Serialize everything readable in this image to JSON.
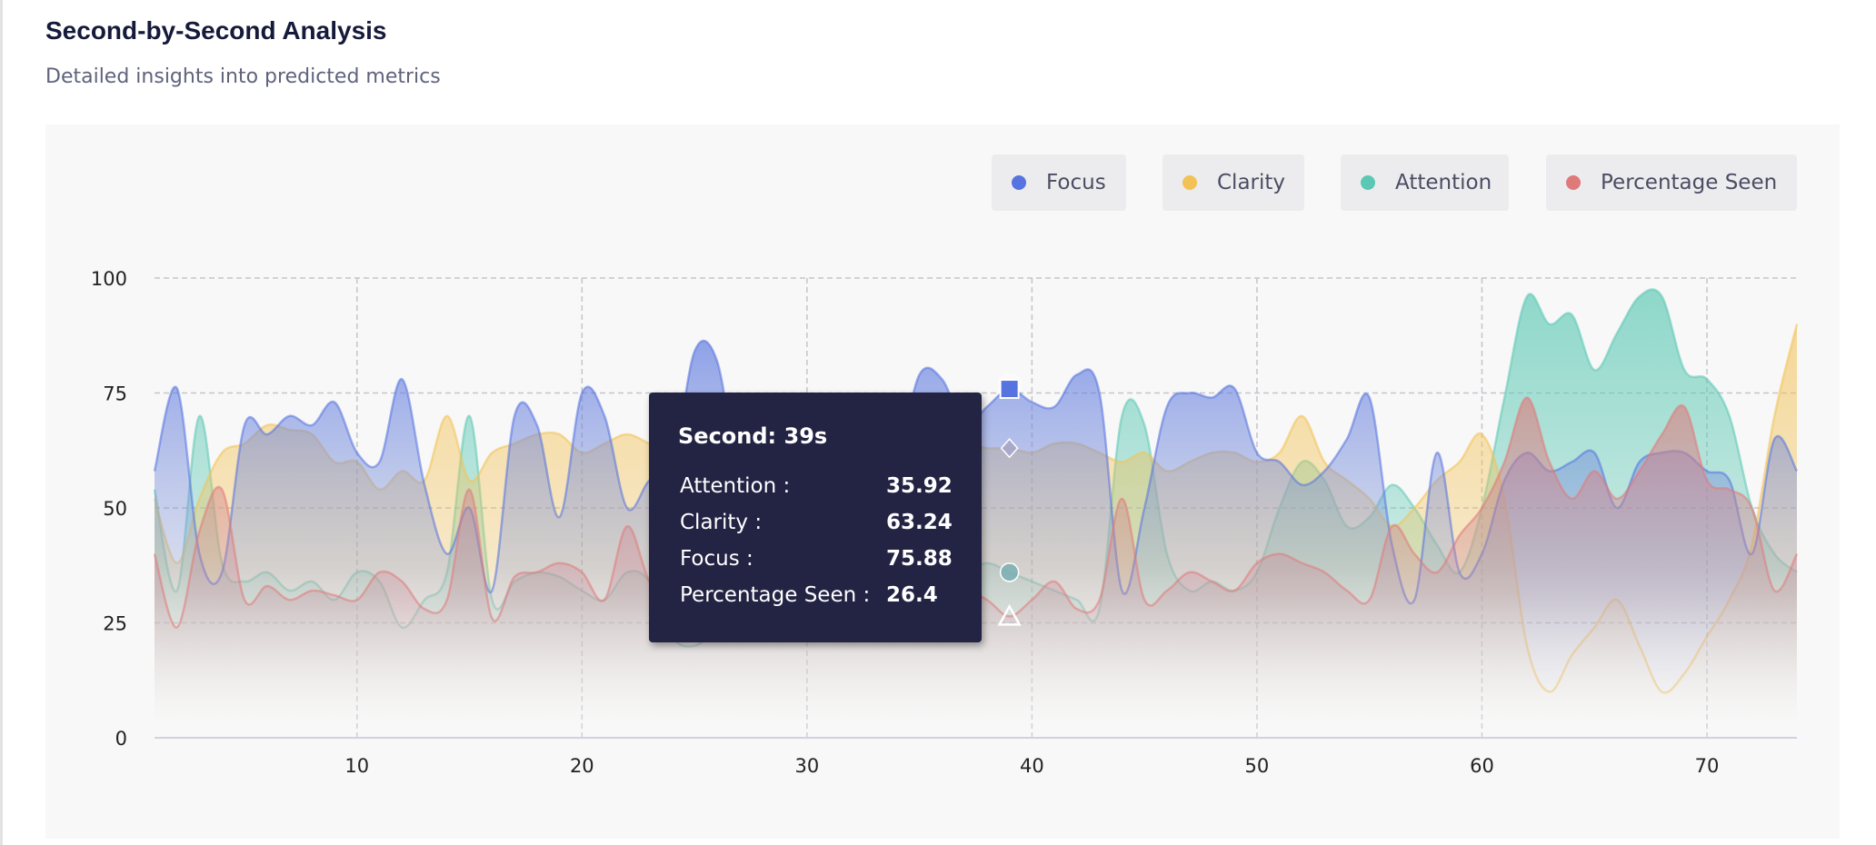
{
  "header": {
    "title": "Second-by-Second Analysis",
    "subtitle": "Detailed insights into predicted metrics"
  },
  "legend": [
    {
      "label": "Focus",
      "color": "#5673e0"
    },
    {
      "label": "Clarity",
      "color": "#f2c256"
    },
    {
      "label": "Attention",
      "color": "#5cc8b4"
    },
    {
      "label": "Percentage Seen",
      "color": "#e07a7a"
    }
  ],
  "tooltip": {
    "title": "Second: 39s",
    "rows": [
      {
        "label": "Attention :",
        "value": "35.92"
      },
      {
        "label": "Clarity :",
        "value": "63.24"
      },
      {
        "label": "Focus :",
        "value": "75.88"
      },
      {
        "label": "Percentage Seen :",
        "value": "26.4"
      }
    ]
  },
  "chart_data": {
    "type": "area",
    "x": [
      1,
      2,
      3,
      4,
      5,
      6,
      7,
      8,
      9,
      10,
      11,
      12,
      13,
      14,
      15,
      16,
      17,
      18,
      19,
      20,
      21,
      22,
      23,
      24,
      25,
      26,
      27,
      28,
      29,
      30,
      31,
      32,
      33,
      34,
      35,
      36,
      37,
      38,
      39,
      40,
      41,
      42,
      43,
      44,
      45,
      46,
      47,
      48,
      49,
      50,
      51,
      52,
      53,
      54,
      55,
      56,
      57,
      58,
      59,
      60,
      61,
      62,
      63,
      64,
      65,
      66,
      67,
      68,
      69,
      70,
      71,
      72,
      73,
      74
    ],
    "xticks": [
      10,
      20,
      30,
      40,
      50,
      60,
      70
    ],
    "yticks": [
      0,
      25,
      50,
      75,
      100
    ],
    "xlim": [
      1,
      74
    ],
    "ylim": [
      0,
      100
    ],
    "grid": true,
    "legend_position": "top-right",
    "hover_index": 38,
    "series": [
      {
        "name": "Attention",
        "color": "#5cc8b4",
        "values": [
          54,
          32,
          70,
          38,
          34,
          36,
          32,
          34,
          30,
          36,
          34,
          24,
          30,
          36,
          70,
          30,
          34,
          36,
          35,
          32,
          30,
          36,
          34,
          22,
          20,
          24,
          30,
          34,
          32,
          30,
          36,
          34,
          32,
          38,
          30,
          34,
          36,
          38,
          36,
          34,
          32,
          30,
          28,
          70,
          68,
          40,
          32,
          34,
          32,
          36,
          50,
          60,
          56,
          46,
          48,
          55,
          50,
          42,
          36,
          50,
          74,
          96,
          90,
          92,
          80,
          88,
          96,
          96,
          80,
          78,
          70,
          50,
          40,
          36
        ]
      },
      {
        "name": "Clarity",
        "color": "#f2c256",
        "values": [
          52,
          38,
          52,
          62,
          64,
          68,
          67,
          66,
          60,
          60,
          54,
          58,
          56,
          70,
          56,
          62,
          64,
          66,
          66,
          62,
          64,
          66,
          64,
          62,
          60,
          64,
          62,
          66,
          63,
          66,
          64,
          65,
          64,
          62,
          62,
          64,
          64,
          63,
          63,
          62,
          64,
          64,
          62,
          60,
          62,
          58,
          60,
          62,
          62,
          60,
          62,
          70,
          60,
          56,
          52,
          46,
          50,
          56,
          60,
          66,
          52,
          20,
          10,
          18,
          24,
          30,
          20,
          10,
          14,
          22,
          30,
          42,
          70,
          90
        ]
      },
      {
        "name": "Focus",
        "color": "#5673e0",
        "values": [
          58,
          76,
          40,
          36,
          68,
          66,
          70,
          68,
          73,
          62,
          60,
          78,
          55,
          40,
          50,
          32,
          70,
          68,
          48,
          75,
          70,
          50,
          56,
          58,
          84,
          82,
          56,
          50,
          48,
          50,
          52,
          50,
          55,
          60,
          79,
          78,
          68,
          72,
          75.88,
          73,
          72,
          79,
          75,
          32,
          50,
          72,
          75,
          74,
          76,
          62,
          60,
          55,
          58,
          65,
          74,
          42,
          30,
          62,
          36,
          40,
          56,
          62,
          58,
          60,
          62,
          50,
          60,
          62,
          62,
          58,
          56,
          40,
          65,
          58
        ]
      },
      {
        "name": "Percentage Seen",
        "color": "#e07a7a",
        "values": [
          40,
          24,
          45,
          54,
          30,
          33,
          30,
          32,
          31,
          30,
          36,
          34,
          28,
          30,
          54,
          26,
          35,
          36,
          38,
          36,
          30,
          46,
          34,
          30,
          28,
          32,
          34,
          30,
          34,
          32,
          30,
          34,
          32,
          30,
          28,
          30,
          32,
          30,
          26.4,
          30,
          34,
          28,
          30,
          52,
          30,
          32,
          36,
          34,
          32,
          38,
          40,
          38,
          36,
          32,
          30,
          46,
          40,
          36,
          44,
          50,
          60,
          74,
          60,
          52,
          58,
          52,
          58,
          66,
          72,
          56,
          54,
          50,
          32,
          40
        ]
      }
    ]
  }
}
